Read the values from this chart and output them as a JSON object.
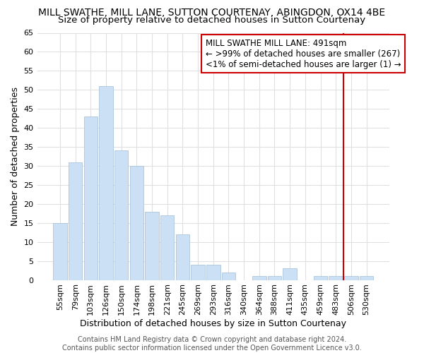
{
  "title": "MILL SWATHE, MILL LANE, SUTTON COURTENAY, ABINGDON, OX14 4BE",
  "subtitle": "Size of property relative to detached houses in Sutton Courtenay",
  "xlabel": "Distribution of detached houses by size in Sutton Courtenay",
  "ylabel": "Number of detached properties",
  "categories": [
    "55sqm",
    "79sqm",
    "103sqm",
    "126sqm",
    "150sqm",
    "174sqm",
    "198sqm",
    "221sqm",
    "245sqm",
    "269sqm",
    "293sqm",
    "316sqm",
    "340sqm",
    "364sqm",
    "388sqm",
    "411sqm",
    "435sqm",
    "459sqm",
    "483sqm",
    "506sqm",
    "530sqm"
  ],
  "values": [
    15,
    31,
    43,
    51,
    34,
    30,
    18,
    17,
    12,
    4,
    4,
    2,
    0,
    1,
    1,
    3,
    0,
    1,
    1,
    1,
    1
  ],
  "bar_color": "#cce0f5",
  "bar_edge_color": "#a0bcd8",
  "ylim": [
    0,
    65
  ],
  "yticks": [
    0,
    5,
    10,
    15,
    20,
    25,
    30,
    35,
    40,
    45,
    50,
    55,
    60,
    65
  ],
  "vline_x_index": 18.5,
  "vline_color": "#cc0000",
  "annotation_line1": "MILL SWATHE MILL LANE: 491sqm",
  "annotation_line2": "← >99% of detached houses are smaller (267)",
  "annotation_line3": "<1% of semi-detached houses are larger (1) →",
  "annotation_box_color": "#cc0000",
  "background_color": "#ffffff",
  "grid_color": "#e0e0e0",
  "footer_text": "Contains HM Land Registry data © Crown copyright and database right 2024.\nContains public sector information licensed under the Open Government Licence v3.0.",
  "title_fontsize": 10,
  "subtitle_fontsize": 9.5,
  "axis_label_fontsize": 9,
  "tick_fontsize": 8,
  "annotation_fontsize": 8.5,
  "footer_fontsize": 7
}
